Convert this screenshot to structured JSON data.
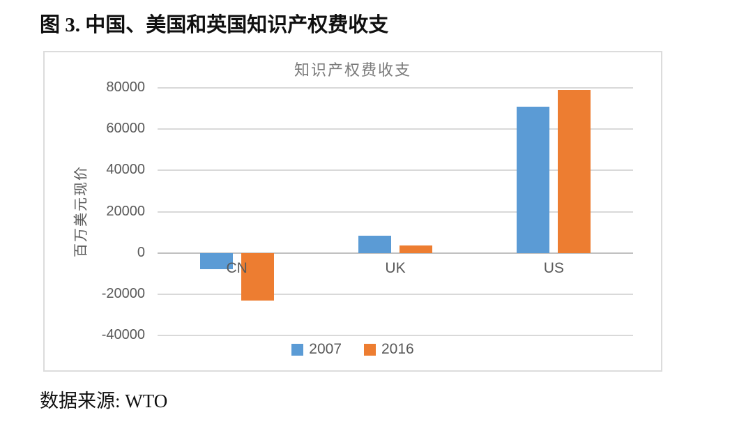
{
  "page": {
    "title": "图 3. 中国、美国和英国知识产权费收支",
    "source": "数据来源: WTO"
  },
  "chart_data": {
    "type": "bar",
    "title": "知识产权费收支",
    "xlabel": "",
    "ylabel": "百万美元现价",
    "categories": [
      "CN",
      "UK",
      "US"
    ],
    "series": [
      {
        "name": "2007",
        "color": "#5B9BD5",
        "values": [
          -8000,
          8500,
          71000
        ]
      },
      {
        "name": "2016",
        "color": "#ED7D31",
        "values": [
          -23000,
          3500,
          79000
        ]
      }
    ],
    "ylim": [
      -40000,
      80000
    ],
    "yticks": [
      80000,
      60000,
      40000,
      20000,
      0,
      -20000,
      -40000
    ],
    "grid": true,
    "legend_position": "bottom",
    "colors": {
      "gridline": "#d9d9d9",
      "axis_line": "#c0c0c0",
      "tick_text": "#595959",
      "title_text": "#7a7a7a"
    }
  }
}
